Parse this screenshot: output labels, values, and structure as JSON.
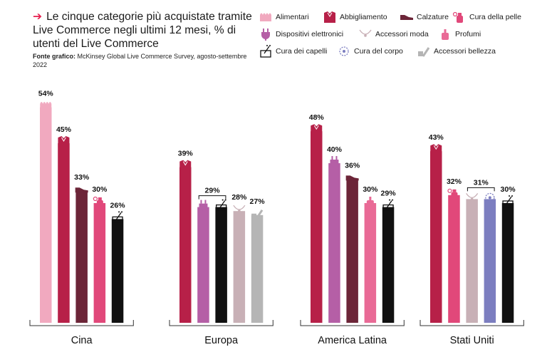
{
  "title": "Le cinque categorie più acquistate tramite Live Commerce negli ultimi 12 mesi, % di utenti del Live Commerce",
  "source_label": "Fonte grafico:",
  "source_text": "McKinsey Global Live Commerce Survey, agosto-settembre 2022",
  "colors": {
    "accent": "#e6204f",
    "Alimentari": "#f1a9bf",
    "Abbigliamento": "#b72048",
    "Calzature": "#6c2538",
    "Cura della pelle": "#e1487a",
    "Dispositivi elettronici": "#b55fa6",
    "Accessori moda": "#c8b0b6",
    "Profumi": "#e96a96",
    "Cura dei capelli": "#111111",
    "Cura del corpo": "#7c7ec0",
    "Accessori bellezza": "#b5b5b5"
  },
  "legend": [
    {
      "label": "Alimentari",
      "icon": "food-icon"
    },
    {
      "label": "Abbigliamento",
      "icon": "shirt-icon"
    },
    {
      "label": "Calzature",
      "icon": "shoe-icon"
    },
    {
      "label": "Cura della pelle",
      "icon": "skincare-icon"
    },
    {
      "label": "Dispositivi elettronici",
      "icon": "plug-icon"
    },
    {
      "label": "Accessori moda",
      "icon": "necklace-icon"
    },
    {
      "label": "Profumi",
      "icon": "perfume-icon"
    },
    {
      "label": "Cura dei capelli",
      "icon": "hair-icon"
    },
    {
      "label": "Cura del corpo",
      "icon": "bodycare-icon"
    },
    {
      "label": "Accessori bellezza",
      "icon": "makeup-icon"
    }
  ],
  "chart_data": {
    "type": "bar",
    "title": "Le cinque categorie più acquistate tramite Live Commerce negli ultimi 12 mesi, % di utenti del Live Commerce",
    "ylim": [
      0,
      60
    ],
    "grid": false,
    "groups": [
      {
        "name": "Cina",
        "bars": [
          {
            "category": "Alimentari",
            "value": 54
          },
          {
            "category": "Abbigliamento",
            "value": 45
          },
          {
            "category": "Calzature",
            "value": 33
          },
          {
            "category": "Cura della pelle",
            "value": 30
          },
          {
            "category": "Cura dei capelli",
            "value": 26
          }
        ]
      },
      {
        "name": "Europa",
        "bars": [
          {
            "category": "Abbigliamento",
            "value": 39
          },
          {
            "category": "Dispositivi elettronici",
            "value": 29
          },
          {
            "category": "Cura dei capelli",
            "value": 29
          },
          {
            "category": "Accessori moda",
            "value": 28
          },
          {
            "category": "Accessori bellezza",
            "value": 27
          }
        ]
      },
      {
        "name": "America Latina",
        "bars": [
          {
            "category": "Abbigliamento",
            "value": 48
          },
          {
            "category": "Dispositivi elettronici",
            "value": 40
          },
          {
            "category": "Calzature",
            "value": 36
          },
          {
            "category": "Profumi",
            "value": 30
          },
          {
            "category": "Cura dei capelli",
            "value": 29
          }
        ]
      },
      {
        "name": "Stati Uniti",
        "bars": [
          {
            "category": "Abbigliamento",
            "value": 43
          },
          {
            "category": "Cura della pelle",
            "value": 32
          },
          {
            "category": "Accessori moda",
            "value": 31
          },
          {
            "category": "Cura del corpo",
            "value": 31
          },
          {
            "category": "Cura dei capelli",
            "value": 30
          }
        ]
      }
    ],
    "bracket_labels": [
      {
        "group": "Europa",
        "bars": [
          1,
          2
        ],
        "label": "29%"
      },
      {
        "group": "Stati Uniti",
        "bars": [
          2,
          3
        ],
        "label": "31%"
      }
    ],
    "value_suffix": "%"
  }
}
